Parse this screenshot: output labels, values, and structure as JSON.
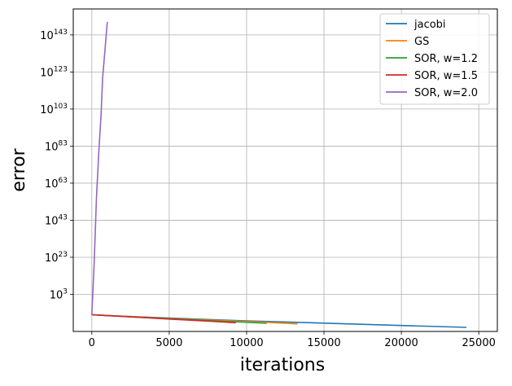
{
  "chart_data": {
    "type": "line",
    "xlabel": "iterations",
    "ylabel": "error",
    "x_ticks": [
      0,
      5000,
      10000,
      15000,
      20000,
      25000
    ],
    "x_tick_labels": [
      "0",
      "5000",
      "10000",
      "15000",
      "20000",
      "25000"
    ],
    "xlim": [
      -1200,
      26200
    ],
    "y_scale": "log",
    "y_tick_exponents": [
      3,
      23,
      43,
      63,
      83,
      103,
      123,
      143
    ],
    "y_tick_base": "10",
    "ylim_exponent": [
      -17,
      157
    ],
    "grid": true,
    "legend_position": "top-right",
    "series": [
      {
        "name": "jacobi",
        "color": "#1f77b4",
        "points": [
          [
            0,
            -8
          ],
          [
            2000,
            -8.8
          ],
          [
            5000,
            -9.8
          ],
          [
            10000,
            -11.3
          ],
          [
            15000,
            -12.5
          ],
          [
            20000,
            -13.8
          ],
          [
            24200,
            -14.8
          ]
        ]
      },
      {
        "name": "GS",
        "color": "#ff7f0e",
        "points": [
          [
            0,
            -8
          ],
          [
            2000,
            -8.8
          ],
          [
            5000,
            -10
          ],
          [
            8000,
            -11
          ],
          [
            11000,
            -12
          ],
          [
            13300,
            -12.9
          ]
        ]
      },
      {
        "name": "SOR, w=1.2",
        "color": "#2ca02c",
        "points": [
          [
            0,
            -8
          ],
          [
            2000,
            -8.9
          ],
          [
            5000,
            -10.1
          ],
          [
            8000,
            -11.3
          ],
          [
            11300,
            -12.6
          ]
        ]
      },
      {
        "name": "SOR, w=1.5",
        "color": "#d62728",
        "points": [
          [
            0,
            -8
          ],
          [
            2000,
            -8.9
          ],
          [
            5000,
            -10.3
          ],
          [
            7500,
            -11.4
          ],
          [
            9300,
            -12.3
          ]
        ]
      },
      {
        "name": "SOR, w=2.0",
        "color": "#9467bd",
        "points": [
          [
            0,
            -8
          ],
          [
            150,
            20
          ],
          [
            300,
            55
          ],
          [
            450,
            80
          ],
          [
            600,
            100
          ],
          [
            700,
            120
          ],
          [
            850,
            135
          ],
          [
            1000,
            150
          ]
        ]
      }
    ]
  }
}
